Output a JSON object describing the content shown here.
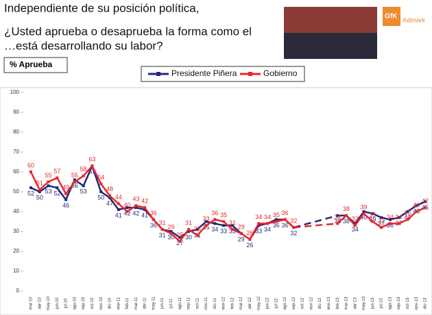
{
  "chart_data": {
    "type": "line",
    "title": [
      "Independiente de su posición política,",
      "¿Usted aprueba o desaprueba la forma como el",
      "…está desarrollando su labor?"
    ],
    "y_label": "% Aprueba",
    "logo": [
      "GfK",
      "Adimark"
    ],
    "categories": [
      "mar-10",
      "abr-10",
      "may-10",
      "jun-10",
      "jul-10",
      "ago-10",
      "sep-10",
      "oct-10",
      "nov-10",
      "dic-10",
      "ene-11",
      "feb-11",
      "mar-11",
      "abr-11",
      "may-11",
      "jun-11",
      "jul-11",
      "ago-11",
      "sep-11",
      "oct-11",
      "nov-11",
      "dic-11",
      "ene-12",
      "feb-12",
      "mar-12",
      "abr-12",
      "may-12",
      "jun-12",
      "jul-12",
      "ago-12",
      "sep-12",
      "oct-12",
      "nov-12",
      "dic-12",
      "ene-13",
      "feb-13",
      "mar-13",
      "abr-13",
      "may-13",
      "jun-13",
      "jul-13",
      "ago-13",
      "sep-13",
      "oct-13",
      "nov-13",
      "dic-13"
    ],
    "series": [
      {
        "name": "Presidente Piñera",
        "color": "#1f2a7a",
        "values": [
          52,
          50,
          53,
          52,
          46,
          56,
          53,
          63,
          50,
          47,
          41,
          42,
          42,
          41,
          36,
          31,
          30,
          27,
          30,
          31,
          35,
          34,
          33,
          33,
          29,
          26,
          33,
          34,
          36,
          36,
          32,
          null,
          null,
          null,
          null,
          38,
          38,
          34,
          40,
          39,
          37,
          36,
          37,
          40,
          43,
          45
        ]
      },
      {
        "name": "Gobierno",
        "color": "#e8262b",
        "values": [
          60,
          51,
          55,
          57,
          49,
          55,
          58,
          63,
          54,
          48,
          44,
          40,
          43,
          42,
          36,
          31,
          29,
          25,
          31,
          28,
          33,
          36,
          35,
          31,
          29,
          26,
          34,
          34,
          35,
          36,
          32,
          null,
          null,
          null,
          null,
          34,
          38,
          33,
          39,
          35,
          32,
          34,
          34,
          36,
          40,
          42
        ]
      }
    ],
    "ylim": [
      0,
      100
    ],
    "yticks": [
      0,
      10,
      20,
      30,
      40,
      50,
      60,
      70,
      80,
      90,
      100
    ],
    "grid": false
  }
}
